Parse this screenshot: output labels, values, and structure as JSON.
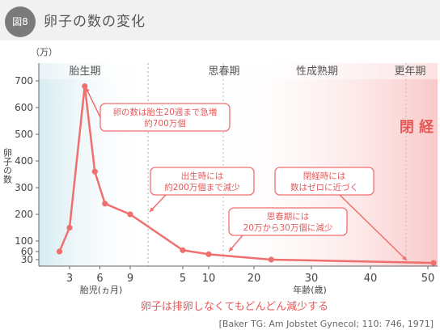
{
  "figure": {
    "badge": "図8",
    "title": "卵子の数の変化",
    "citation": "[Baker TG: Am Jobstet Gynecol; 110: 746, 1971]",
    "caption": "卵子は排卵しなくてもどんどん減少する"
  },
  "chart_data": {
    "type": "line",
    "unit_label": "（万）",
    "ylabel": "卵子の数",
    "y_ticks": [
      30,
      60,
      100,
      200,
      300,
      400,
      500,
      600,
      700
    ],
    "ylim": [
      0,
      700
    ],
    "x_segments": [
      {
        "label": "胎児(ヵ月)",
        "ticks": [
          3,
          6,
          9
        ]
      },
      {
        "label": "年齢(歳)",
        "ticks": [
          5,
          10,
          20,
          30,
          40,
          50
        ]
      }
    ],
    "phases": [
      "胎生期",
      "思春期",
      "性成熟期",
      "更年期"
    ],
    "menopause_label": "閉 経",
    "series": [
      {
        "values": [
          {
            "segment": "fetal",
            "x": 2,
            "y": 60
          },
          {
            "segment": "fetal",
            "x": 3,
            "y": 150
          },
          {
            "segment": "fetal",
            "x": 4.5,
            "y": 680
          },
          {
            "segment": "fetal",
            "x": 5.5,
            "y": 360
          },
          {
            "segment": "fetal",
            "x": 6.5,
            "y": 240
          },
          {
            "segment": "fetal",
            "x": 9,
            "y": 200
          },
          {
            "segment": "age",
            "x": 5,
            "y": 65
          },
          {
            "segment": "age",
            "x": 10,
            "y": 50
          },
          {
            "segment": "age",
            "x": 23,
            "y": 30
          },
          {
            "segment": "age",
            "x": 51,
            "y": 15
          }
        ]
      }
    ],
    "colors": {
      "line": "#ef6f6f",
      "accent": "#e65858",
      "fetal_band": "#dbeef3",
      "menopause_band": "#f9cccc"
    },
    "annotations": [
      {
        "id": "peak",
        "lines": [
          "卵の数は胎生20週まで急増",
          "約700万個"
        ]
      },
      {
        "id": "birth",
        "lines": [
          "出生時には",
          "約200万個まで減少"
        ]
      },
      {
        "id": "puberty",
        "lines": [
          "思春期には",
          "20万から30万個に減少"
        ]
      },
      {
        "id": "menopause",
        "lines": [
          "閉経時には",
          "数はゼロに近づく"
        ]
      }
    ]
  }
}
